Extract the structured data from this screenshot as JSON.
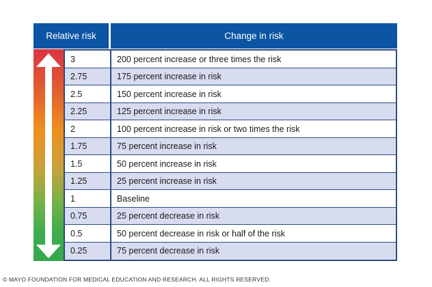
{
  "header": {
    "relative_risk": "Relative risk",
    "change_in_risk": "Change in risk"
  },
  "rows": [
    {
      "value": "3",
      "change": "200 percent increase or three times the risk"
    },
    {
      "value": "2.75",
      "change": "175 percent increase in risk"
    },
    {
      "value": "2.5",
      "change": "150 percent increase in risk"
    },
    {
      "value": "2.25",
      "change": "125 percent increase in risk"
    },
    {
      "value": "2",
      "change": "100 percent increase in risk or two times the risk"
    },
    {
      "value": "1.75",
      "change": "75 percent increase in risk"
    },
    {
      "value": "1.5",
      "change": "50 percent increase in risk"
    },
    {
      "value": "1.25",
      "change": "25 percent increase in risk"
    },
    {
      "value": "1",
      "change": "Baseline"
    },
    {
      "value": "0.75",
      "change": "25 percent decrease in risk"
    },
    {
      "value": "0.5",
      "change": "50 percent decrease in risk or half of the risk"
    },
    {
      "value": "0.25",
      "change": "75 percent decrease in risk"
    }
  ],
  "footer": {
    "copyright": "© MAYO FOUNDATION FOR MEDICAL EDUCATION AND RESEARCH. ALL RIGHTS RESERVED."
  },
  "colors": {
    "header": "#0b55a3",
    "row_shade": "#d8dcf0",
    "border": "#2e4a80",
    "gradient_top": "#d9343f",
    "gradient_bottom": "#33a84c"
  }
}
